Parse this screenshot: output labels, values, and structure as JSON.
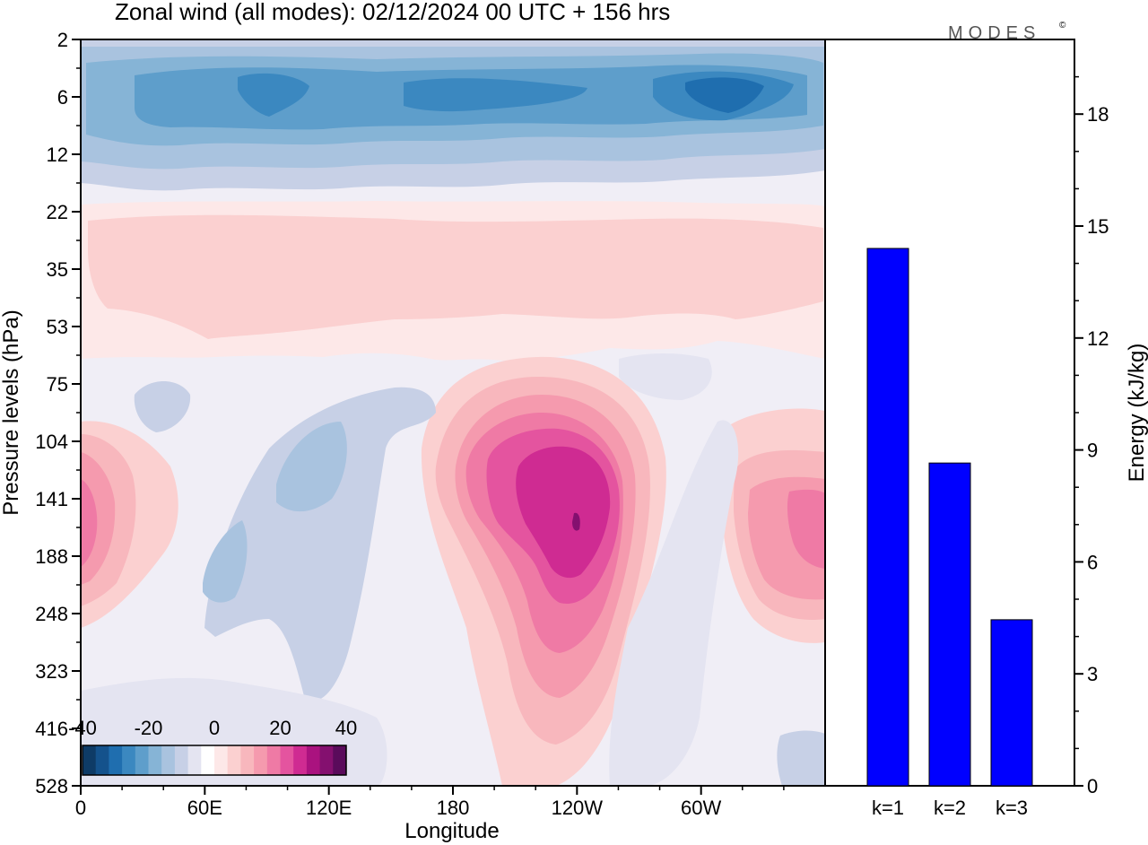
{
  "title": "Zonal wind (all modes):  02/12/2024  00 UTC  + 156 hrs",
  "brand": "MODES",
  "brand_mark": "©",
  "chart_data": [
    {
      "type": "heatmap",
      "xlabel": "Longitude",
      "ylabel": "Pressure levels (hPa)",
      "x_ticks": [
        "0",
        "60E",
        "120E",
        "180",
        "120W",
        "60W"
      ],
      "y_ticks": [
        "2",
        "6",
        "12",
        "22",
        "35",
        "53",
        "75",
        "104",
        "141",
        "188",
        "248",
        "323",
        "416",
        "528"
      ],
      "colorbar": {
        "tick_labels": [
          "-40",
          "-20",
          "0",
          "20",
          "40"
        ],
        "range": [
          -40,
          40
        ],
        "colors": [
          "#0e3b66",
          "#14528c",
          "#1f6eaf",
          "#3b88c0",
          "#5e9ecb",
          "#86b4d6",
          "#a9c3df",
          "#c7d0e6",
          "#e4e4f1",
          "#ffffff",
          "#fde8e8",
          "#fbd0d0",
          "#f8b7bd",
          "#f59aae",
          "#ef7aa5",
          "#e4549f",
          "#cf2b92",
          "#aa127f",
          "#84106f",
          "#5a0b5b"
        ]
      },
      "features": [
        {
          "sign": "negative",
          "description_levels": [
            2,
            12
          ],
          "longitudes": "0-360",
          "min": -30
        },
        {
          "sign": "positive",
          "levels": [
            104,
            323
          ],
          "longitude": "120W",
          "max": 40
        },
        {
          "sign": "positive",
          "levels": [
            104,
            248
          ],
          "longitude": "0/360",
          "max": 30
        }
      ]
    },
    {
      "type": "bar",
      "categories": [
        "k=1",
        "k=2",
        "k=3"
      ],
      "values": [
        14.4,
        8.65,
        4.45
      ],
      "ylabel": "Energy (kJ/kg)",
      "ylim": [
        0,
        20
      ],
      "y_ticks": [
        "0",
        "3",
        "6",
        "9",
        "12",
        "15",
        "18"
      ],
      "bar_color": "#0000ff"
    }
  ]
}
